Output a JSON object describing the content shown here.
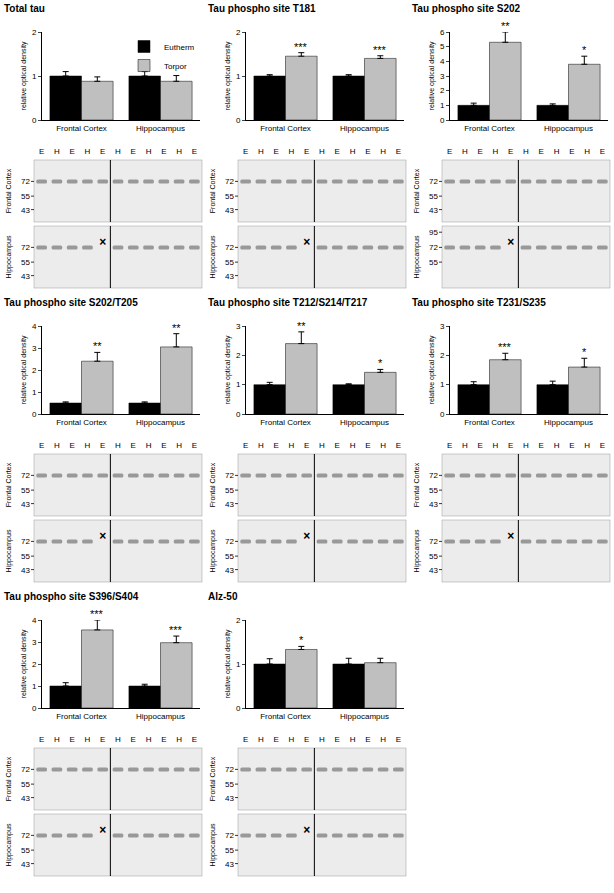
{
  "chart_data": [
    {
      "type": "bar",
      "title": "Total tau",
      "categories": [
        "Frontal Cortex",
        "Hippocampus"
      ],
      "ylabel": "relative optical density",
      "ylim": [
        0,
        2
      ],
      "yticks": [
        0,
        1,
        2
      ],
      "legend": "top right",
      "series": [
        {
          "name": "Eutherm",
          "color": "#000000",
          "values": [
            1.0,
            1.0
          ],
          "errors": [
            0.1,
            0.1
          ]
        },
        {
          "name": "Torpor",
          "color": "#bfbfbf",
          "values": [
            0.88,
            0.88
          ],
          "errors": [
            0.1,
            0.13
          ]
        }
      ],
      "blot": {
        "lanes": [
          "E",
          "H",
          "E",
          "H",
          "E",
          "H",
          "E",
          "H",
          "E",
          "H",
          "E"
        ],
        "rows": [
          {
            "label": "Frontal Cortex",
            "markers": [
              72,
              55,
              43
            ]
          },
          {
            "label": "Hippocampus",
            "markers": [
              72,
              55,
              43
            ],
            "missing_lane": 5,
            "missing_mark": "×"
          }
        ]
      }
    },
    {
      "type": "bar",
      "title": "Tau phospho site T181",
      "categories": [
        "Frontal Cortex",
        "Hippocampus"
      ],
      "ylabel": "relative optical density",
      "ylim": [
        0,
        2
      ],
      "yticks": [
        0,
        1,
        2
      ],
      "series": [
        {
          "name": "Eutherm",
          "color": "#000000",
          "values": [
            1.0,
            1.0
          ],
          "errors": [
            0.03,
            0.03
          ]
        },
        {
          "name": "Torpor",
          "color": "#bfbfbf",
          "values": [
            1.45,
            1.4
          ],
          "errors": [
            0.08,
            0.06
          ],
          "significance": [
            "***",
            "***"
          ]
        }
      ],
      "blot": {
        "lanes": [
          "E",
          "H",
          "E",
          "H",
          "E",
          "H",
          "E",
          "H",
          "E",
          "H",
          "E"
        ],
        "rows": [
          {
            "label": "Frontal Cortex",
            "markers": [
              72,
              55,
              43
            ]
          },
          {
            "label": "Hippocampus",
            "markers": [
              72,
              55,
              43
            ],
            "missing_lane": 5,
            "missing_mark": "×"
          }
        ]
      }
    },
    {
      "type": "bar",
      "title": "Tau phospho site S202",
      "categories": [
        "Frontal Cortex",
        "Hippocampus"
      ],
      "ylabel": "relative optical density",
      "ylim": [
        0,
        6
      ],
      "yticks": [
        0,
        1,
        2,
        3,
        4,
        5,
        6
      ],
      "series": [
        {
          "name": "Eutherm",
          "color": "#000000",
          "values": [
            1.0,
            1.0
          ],
          "errors": [
            0.15,
            0.1
          ]
        },
        {
          "name": "Torpor",
          "color": "#bfbfbf",
          "values": [
            5.3,
            3.8
          ],
          "errors": [
            0.7,
            0.55
          ],
          "significance": [
            "**",
            "*"
          ]
        }
      ],
      "blot": {
        "lanes": [
          "E",
          "H",
          "E",
          "H",
          "E",
          "H",
          "E",
          "H",
          "E",
          "H",
          "E"
        ],
        "rows": [
          {
            "label": "Frontal Cortex",
            "markers": [
              72,
              55,
              43
            ]
          },
          {
            "label": "Hippocampus",
            "markers": [
              95,
              72,
              55
            ],
            "missing_lane": 5,
            "missing_mark": "×"
          }
        ]
      }
    },
    {
      "type": "bar",
      "title": "Tau phospho site S202/T205",
      "categories": [
        "Frontal Cortex",
        "Hippocampus"
      ],
      "ylabel": "relative optical density",
      "ylim": [
        0,
        4
      ],
      "yticks": [
        0,
        1,
        2,
        3,
        4
      ],
      "series": [
        {
          "name": "Eutherm",
          "color": "#000000",
          "values": [
            0.5,
            0.5
          ],
          "errors": [
            0.05,
            0.05
          ]
        },
        {
          "name": "Torpor",
          "color": "#bfbfbf",
          "values": [
            2.4,
            3.05
          ],
          "errors": [
            0.4,
            0.6
          ],
          "significance": [
            "**",
            "**"
          ]
        }
      ],
      "blot": {
        "lanes": [
          "E",
          "H",
          "E",
          "H",
          "E",
          "H",
          "E",
          "H",
          "E",
          "H",
          "E"
        ],
        "rows": [
          {
            "label": "Frontal Cortex",
            "markers": [
              72,
              55,
              43
            ]
          },
          {
            "label": "Hippocampus",
            "markers": [
              72,
              55,
              43
            ],
            "missing_lane": 5,
            "missing_mark": "×"
          }
        ]
      }
    },
    {
      "type": "bar",
      "title": "Tau phospho site T212/S214/T217",
      "categories": [
        "Frontal Cortex",
        "Hippocampus"
      ],
      "ylabel": "relative optical density",
      "ylim": [
        0,
        3
      ],
      "yticks": [
        0,
        1,
        2,
        3
      ],
      "series": [
        {
          "name": "Eutherm",
          "color": "#000000",
          "values": [
            1.0,
            1.0
          ],
          "errors": [
            0.08,
            0.03
          ]
        },
        {
          "name": "Torpor",
          "color": "#bfbfbf",
          "values": [
            2.4,
            1.42
          ],
          "errors": [
            0.4,
            0.1
          ],
          "significance": [
            "**",
            "*"
          ]
        }
      ],
      "blot": {
        "lanes": [
          "E",
          "H",
          "E",
          "H",
          "E",
          "H",
          "E",
          "H",
          "E",
          "H",
          "E"
        ],
        "rows": [
          {
            "label": "Frontal Cortex",
            "markers": [
              72,
              55,
              43
            ]
          },
          {
            "label": "Hippocampus",
            "markers": [
              72,
              55,
              43
            ],
            "missing_lane": 5,
            "missing_mark": "×"
          }
        ]
      }
    },
    {
      "type": "bar",
      "title": "Tau phospho site T231/S235",
      "categories": [
        "Frontal Cortex",
        "Hippocampus"
      ],
      "ylabel": "relative optical density",
      "ylim": [
        0,
        3
      ],
      "yticks": [
        0,
        1,
        2,
        3
      ],
      "series": [
        {
          "name": "Eutherm",
          "color": "#000000",
          "values": [
            1.0,
            1.0
          ],
          "errors": [
            0.1,
            0.12
          ]
        },
        {
          "name": "Torpor",
          "color": "#bfbfbf",
          "values": [
            1.85,
            1.6
          ],
          "errors": [
            0.22,
            0.3
          ],
          "significance": [
            "***",
            "*"
          ]
        }
      ],
      "blot": {
        "lanes": [
          "E",
          "H",
          "E",
          "H",
          "E",
          "H",
          "E",
          "H",
          "E",
          "H",
          "E"
        ],
        "rows": [
          {
            "label": "Frontal Cortex",
            "markers": [
              72,
              55,
              43
            ]
          },
          {
            "label": "Hippocampus",
            "markers": [
              72,
              55,
              43
            ],
            "missing_lane": 5,
            "missing_mark": "×"
          }
        ]
      }
    },
    {
      "type": "bar",
      "title": "Tau phospho site S396/S404",
      "categories": [
        "Frontal Cortex",
        "Hippocampus"
      ],
      "ylabel": "relative optical density",
      "ylim": [
        0,
        4
      ],
      "yticks": [
        0,
        1,
        2,
        3,
        4
      ],
      "series": [
        {
          "name": "Eutherm",
          "color": "#000000",
          "values": [
            1.0,
            1.0
          ],
          "errors": [
            0.15,
            0.08
          ]
        },
        {
          "name": "Torpor",
          "color": "#bfbfbf",
          "values": [
            3.55,
            2.97
          ],
          "errors": [
            0.45,
            0.3
          ],
          "significance": [
            "***",
            "***"
          ]
        }
      ],
      "blot": {
        "lanes": [
          "E",
          "H",
          "E",
          "H",
          "E",
          "H",
          "E",
          "H",
          "E",
          "H",
          "E"
        ],
        "rows": [
          {
            "label": "Frontal Cortex",
            "markers": [
              72,
              55,
              43
            ]
          },
          {
            "label": "Hippocampus",
            "markers": [
              72,
              55,
              43
            ],
            "missing_lane": 5,
            "missing_mark": "×"
          }
        ]
      }
    },
    {
      "type": "bar",
      "title": "Alz-50",
      "categories": [
        "Frontal Cortex",
        "Hippocampus"
      ],
      "ylabel": "relative optical density",
      "ylim": [
        0,
        2
      ],
      "yticks": [
        0,
        1,
        2
      ],
      "series": [
        {
          "name": "Eutherm",
          "color": "#000000",
          "values": [
            1.0,
            1.0
          ],
          "errors": [
            0.12,
            0.13
          ]
        },
        {
          "name": "Torpor",
          "color": "#bfbfbf",
          "values": [
            1.33,
            1.03
          ],
          "errors": [
            0.07,
            0.1
          ],
          "significance": [
            "*",
            null
          ]
        }
      ],
      "blot": {
        "lanes": [
          "E",
          "H",
          "E",
          "H",
          "E",
          "H",
          "E",
          "H",
          "E",
          "H",
          "E"
        ],
        "rows": [
          {
            "label": "Frontal Cortex",
            "markers": [
              72,
              55,
              43
            ]
          },
          {
            "label": "Hippocampus",
            "markers": [
              72,
              55,
              43
            ],
            "missing_lane": 5,
            "missing_mark": "×"
          }
        ]
      }
    }
  ]
}
